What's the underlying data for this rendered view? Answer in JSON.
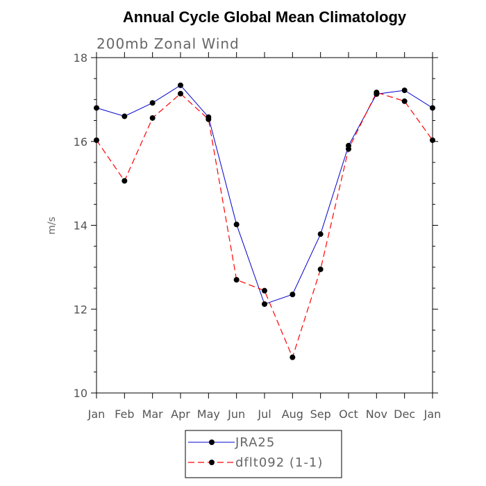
{
  "chart_data": {
    "type": "line",
    "title": "Annual Cycle Global Mean Climatology",
    "subtitle": "200mb Zonal Wind",
    "xlabel": "",
    "ylabel": "m/s",
    "categories": [
      "Jan",
      "Feb",
      "Mar",
      "Apr",
      "May",
      "Jun",
      "Jul",
      "Aug",
      "Sep",
      "Oct",
      "Nov",
      "Dec",
      "Jan"
    ],
    "ylim": [
      10,
      18
    ],
    "yticks": [
      "10",
      "12",
      "14",
      "16",
      "18"
    ],
    "grid": false,
    "legend_position": "bottom-center",
    "series": [
      {
        "name": "JRA25",
        "color": "#0000cc",
        "line_style": "solid",
        "marker": "filled-circle",
        "values": [
          16.8,
          16.6,
          16.92,
          17.34,
          16.58,
          14.02,
          12.12,
          12.35,
          13.79,
          15.9,
          17.13,
          17.22,
          16.8
        ]
      },
      {
        "name": "dflt092 (1-1)",
        "color": "#ff0000",
        "line_style": "dashed",
        "marker": "filled-circle",
        "values": [
          16.03,
          15.06,
          16.56,
          17.14,
          16.53,
          12.7,
          12.44,
          10.85,
          12.95,
          15.82,
          17.17,
          16.96,
          16.03
        ]
      }
    ]
  }
}
